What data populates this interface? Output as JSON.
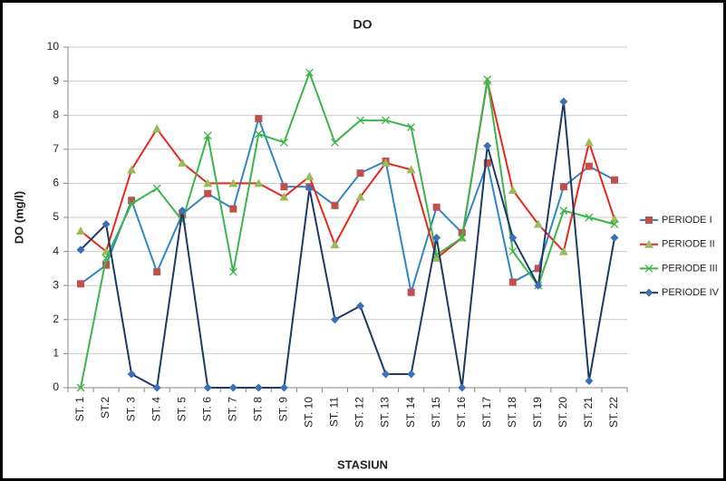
{
  "chart_data": {
    "type": "line",
    "title": "DO",
    "x_label": "STASIUN",
    "y_label": "DO (mg/l)",
    "categories": [
      "ST. 1",
      "ST.2",
      "ST. 3",
      "ST. 4",
      "ST. 5",
      "ST. 6",
      "ST. 7",
      "ST. 8",
      "ST. 9",
      "ST. 10",
      "ST. 11",
      "ST. 12",
      "ST. 13",
      "ST. 14",
      "ST. 15",
      "ST. 16",
      "ST. 17",
      "ST. 18",
      "ST. 19",
      "ST. 20",
      "ST. 21",
      "ST. 22"
    ],
    "series": [
      {
        "name": "PERIODE I",
        "color": "#2f86c5",
        "marker": "square",
        "marker_color": "#c0504d",
        "values": [
          3.05,
          3.6,
          5.5,
          3.4,
          5.1,
          5.7,
          5.25,
          7.9,
          5.9,
          5.9,
          5.35,
          6.3,
          6.65,
          2.8,
          5.3,
          4.55,
          6.6,
          3.1,
          3.5,
          5.9,
          6.5,
          6.1
        ]
      },
      {
        "name": "PERIODE II",
        "color": "#e8271d",
        "marker": "triangle",
        "marker_color": "#9bbb59",
        "values": [
          4.6,
          4.0,
          6.4,
          7.6,
          6.6,
          6.0,
          6.0,
          6.0,
          5.6,
          6.2,
          4.2,
          5.6,
          6.6,
          6.4,
          3.8,
          4.4,
          9.0,
          5.8,
          4.8,
          4.0,
          7.2,
          4.95
        ]
      },
      {
        "name": "PERIODE III",
        "color": "#3cb54a",
        "marker": "x",
        "marker_color": "#3cb54a",
        "values": [
          0,
          3.8,
          5.4,
          5.85,
          4.9,
          7.4,
          3.4,
          7.45,
          7.2,
          9.25,
          7.2,
          7.85,
          7.85,
          7.65,
          3.9,
          4.4,
          9.05,
          4.0,
          3.0,
          5.2,
          5.0,
          4.8
        ]
      },
      {
        "name": "PERIODE IV",
        "color": "#1f3864",
        "marker": "diamond",
        "marker_color": "#3a70b8",
        "values": [
          4.05,
          4.8,
          0.4,
          0,
          5.2,
          0,
          0,
          0,
          0,
          5.85,
          2.0,
          2.4,
          0.4,
          0.4,
          4.4,
          0,
          7.1,
          4.4,
          3.0,
          8.4,
          0.2,
          4.4
        ]
      }
    ],
    "ylim": [
      0,
      10
    ],
    "yticks": [
      0,
      1,
      2,
      3,
      4,
      5,
      6,
      7,
      8,
      9,
      10
    ],
    "grid": true,
    "legend": "right"
  }
}
